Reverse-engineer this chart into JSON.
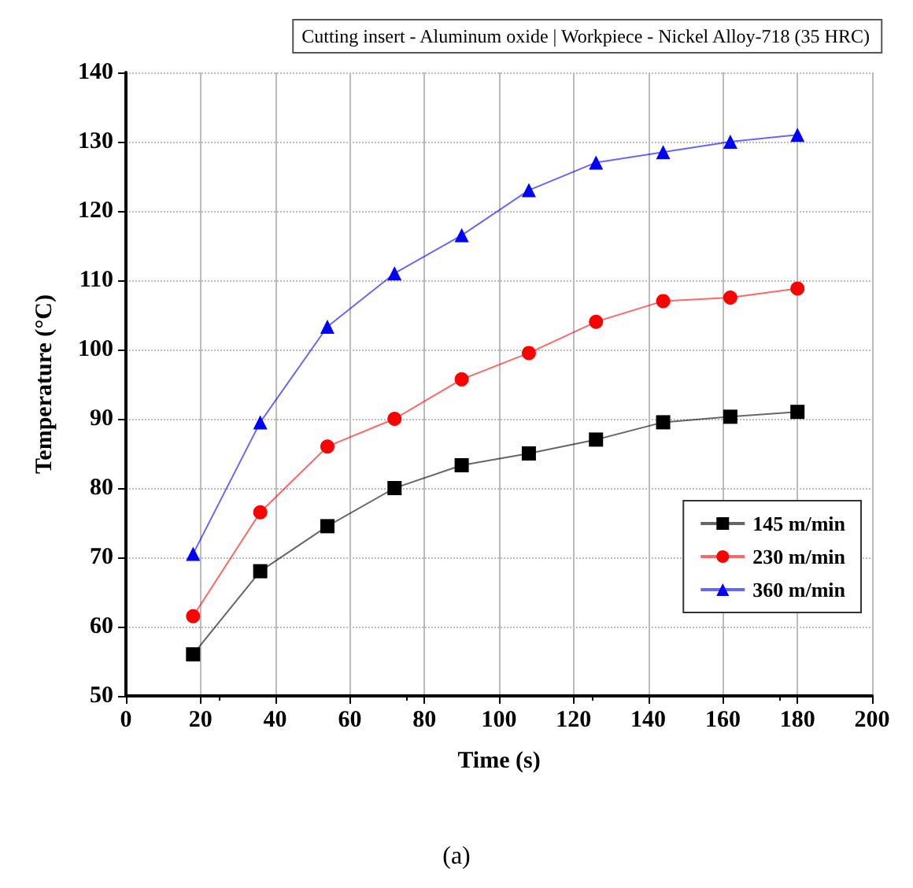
{
  "chart_data": {
    "type": "line",
    "title": "Cutting insert - Aluminum oxide | Workpiece - Nickel Alloy-718 (35 HRC)",
    "xlabel": "Time (s)",
    "ylabel": "Temperature (°C)",
    "annotations": [
      "(a)"
    ],
    "x": [
      18,
      36,
      54,
      72,
      90,
      108,
      126,
      144,
      162,
      180
    ],
    "series": [
      {
        "name": "145 m/min",
        "color": "#000000",
        "marker": "square",
        "values": [
          56,
          68,
          74.5,
          80,
          83.3,
          85,
          87,
          89.5,
          90.3,
          91
        ]
      },
      {
        "name": "230 m/min",
        "color": "#ff0000",
        "marker": "circle",
        "values": [
          61.5,
          76.5,
          86,
          90,
          95.7,
          99.5,
          104,
          107,
          107.5,
          108.8
        ]
      },
      {
        "name": "360 m/min",
        "color": "#0000ff",
        "marker": "triangle",
        "values": [
          70.5,
          89.5,
          103.3,
          111,
          116.5,
          123,
          127,
          128.5,
          130,
          131
        ]
      }
    ],
    "xlim": [
      0,
      200
    ],
    "xticks": [
      0,
      20,
      40,
      60,
      80,
      100,
      120,
      140,
      160,
      180,
      200
    ],
    "ylim": [
      50,
      140
    ],
    "yticks": [
      50,
      60,
      70,
      80,
      90,
      100,
      110,
      120,
      130,
      140
    ],
    "grid": true,
    "legend": "right",
    "line_style": "solid"
  }
}
